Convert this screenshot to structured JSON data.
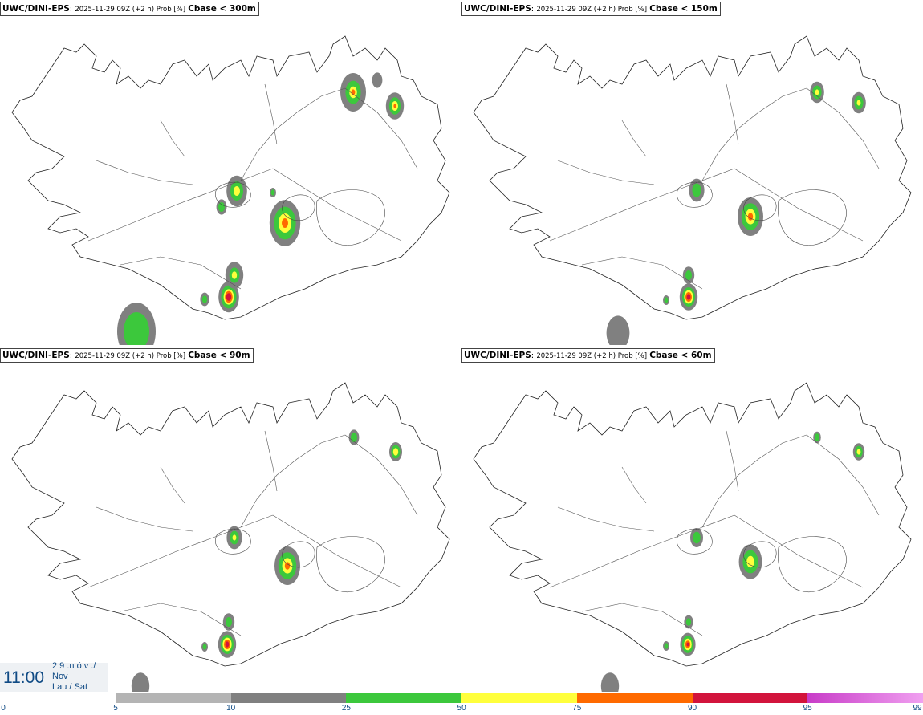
{
  "panels": [
    {
      "model": "UWC/DINI-EPS",
      "sep": ":",
      "run": "2025-11-29 09Z (+2 h) Prob [%]",
      "variable": "Cbase < 300m"
    },
    {
      "model": "UWC/DINI-EPS",
      "sep": ":",
      "run": "2025-11-29 09Z (+2 h) Prob [%]",
      "variable": "Cbase < 150m"
    },
    {
      "model": "UWC/DINI-EPS",
      "sep": ":",
      "run": "2025-11-29 09Z (+2 h) Prob [%]",
      "variable": "Cbase < 90m"
    },
    {
      "model": "UWC/DINI-EPS",
      "sep": ":",
      "run": "2025-11-29 09Z (+2 h) Prob [%]",
      "variable": "Cbase < 60m"
    }
  ],
  "valid_time": {
    "time": "11:00",
    "line1": "2 9 .n ó v ./",
    "line2": "Nov",
    "line3": "Lau / Sat"
  },
  "colorbar": {
    "ticks": [
      "0",
      "5",
      "10",
      "25",
      "50",
      "75",
      "90",
      "95",
      "99"
    ],
    "colors": [
      "#ffffff",
      "#b4b4b4",
      "#808080",
      "#3cc83c",
      "#ffff3c",
      "#ff6a00",
      "#d2143c",
      "#c83cc8",
      "#f0a0f0"
    ]
  }
}
